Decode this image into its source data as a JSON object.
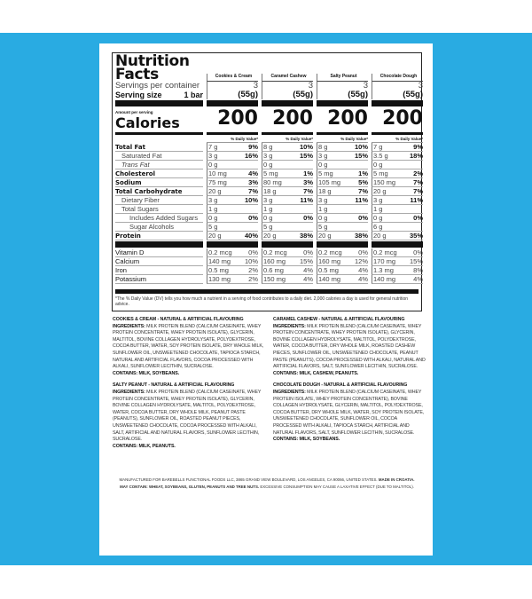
{
  "label": {
    "title_line1": "Nutrition",
    "title_line2": "Facts",
    "servings_label": "Servings per container",
    "serving_size_label": "Serving size",
    "serving_size_value": "1 bar",
    "amount_per_serving": "Amount per serving",
    "calories_label": "Calories",
    "dv_header": "% Daily Value*",
    "products": [
      {
        "name": "Cookies & Cream",
        "servings": "3",
        "size": "(55g)",
        "calories": "200"
      },
      {
        "name": "Caramel Cashew",
        "servings": "3",
        "size": "(55g)",
        "calories": "200"
      },
      {
        "name": "Salty Peanut",
        "servings": "3",
        "size": "(55g)",
        "calories": "200"
      },
      {
        "name": "Chocolate Dough",
        "servings": "3",
        "size": "(55g)",
        "calories": "200"
      }
    ],
    "nutrients": [
      {
        "label": "Total Fat",
        "style": "b",
        "values": [
          [
            "7 g",
            "9%"
          ],
          [
            "8 g",
            "10%"
          ],
          [
            "8 g",
            "10%"
          ],
          [
            "7 g",
            "9%"
          ]
        ]
      },
      {
        "label": "Saturated Fat",
        "style": "i1",
        "values": [
          [
            "3 g",
            "16%"
          ],
          [
            "3 g",
            "15%"
          ],
          [
            "3 g",
            "15%"
          ],
          [
            "3.5 g",
            "18%"
          ]
        ]
      },
      {
        "label": "Trans Fat",
        "style": "i1 it",
        "values": [
          [
            "0 g",
            ""
          ],
          [
            "0 g",
            ""
          ],
          [
            "0 g",
            ""
          ],
          [
            "0 g",
            ""
          ]
        ]
      },
      {
        "label": "Cholesterol",
        "style": "b",
        "values": [
          [
            "10 mg",
            "4%"
          ],
          [
            "5 mg",
            "1%"
          ],
          [
            "5 mg",
            "1%"
          ],
          [
            "5 mg",
            "2%"
          ]
        ]
      },
      {
        "label": "Sodium",
        "style": "b",
        "values": [
          [
            "75 mg",
            "3%"
          ],
          [
            "80 mg",
            "3%"
          ],
          [
            "105 mg",
            "5%"
          ],
          [
            "150 mg",
            "7%"
          ]
        ]
      },
      {
        "label": "Total Carbohydrate",
        "style": "b",
        "values": [
          [
            "20 g",
            "7%"
          ],
          [
            "18 g",
            "7%"
          ],
          [
            "18 g",
            "7%"
          ],
          [
            "20 g",
            "7%"
          ]
        ]
      },
      {
        "label": "Dietary Fiber",
        "style": "i1",
        "values": [
          [
            "3 g",
            "10%"
          ],
          [
            "3 g",
            "11%"
          ],
          [
            "3 g",
            "11%"
          ],
          [
            "3 g",
            "11%"
          ]
        ]
      },
      {
        "label": "Total Sugars",
        "style": "i1",
        "values": [
          [
            "1 g",
            ""
          ],
          [
            "1 g",
            ""
          ],
          [
            "1 g",
            ""
          ],
          [
            "1 g",
            ""
          ]
        ]
      },
      {
        "label": "Includes Added Sugars",
        "style": "i2",
        "values": [
          [
            "0 g",
            "0%"
          ],
          [
            "0 g",
            "0%"
          ],
          [
            "0 g",
            "0%"
          ],
          [
            "0 g",
            "0%"
          ]
        ]
      },
      {
        "label": "Sugar Alcohols",
        "style": "i2",
        "values": [
          [
            "5 g",
            ""
          ],
          [
            "5 g",
            ""
          ],
          [
            "5 g",
            ""
          ],
          [
            "6 g",
            ""
          ]
        ]
      },
      {
        "label": "Protein",
        "style": "b",
        "values": [
          [
            "20 g",
            "40%"
          ],
          [
            "20 g",
            "38%"
          ],
          [
            "20 g",
            "38%"
          ],
          [
            "20 g",
            "35%"
          ]
        ]
      }
    ],
    "micros": [
      {
        "label": "Vitamin D",
        "values": [
          [
            "0.2 mcg",
            "0%"
          ],
          [
            "0.2 mcg",
            "0%"
          ],
          [
            "0.2 mcg",
            "0%"
          ],
          [
            "0.2 mcg",
            "0%"
          ]
        ]
      },
      {
        "label": "Calcium",
        "values": [
          [
            "140 mg",
            "10%"
          ],
          [
            "160 mg",
            "15%"
          ],
          [
            "160 mg",
            "12%"
          ],
          [
            "170 mg",
            "15%"
          ]
        ]
      },
      {
        "label": "Iron",
        "values": [
          [
            "0.5 mg",
            "2%"
          ],
          [
            "0.6 mg",
            "4%"
          ],
          [
            "0.5 mg",
            "4%"
          ],
          [
            "1.3 mg",
            "8%"
          ]
        ]
      },
      {
        "label": "Potassium",
        "values": [
          [
            "130 mg",
            "2%"
          ],
          [
            "150 mg",
            "4%"
          ],
          [
            "140 mg",
            "4%"
          ],
          [
            "140 mg",
            "4%"
          ]
        ]
      }
    ],
    "footnote": "*The % Daily Value (DV) tells you how much a nutrient in a serving of food contributes to a daily diet. 2,000 calories a day is used for general nutrition advice."
  },
  "ingredients": [
    {
      "heading": "Cookies & Cream - Natural & Artificial Flavouring",
      "label": "Ingredients:",
      "text": " Milk protein blend (calcium caseinate, whey protein concentrate, whey protein isolate), glycerin, maltitol, bovine collagen hydrolysate, polydextrose, cocoa butter, water, soy protein isolate, dry whole milk, sunflower oil, unsweetened chocolate, tapioca starch, natural and artificial flavors, cocoa processed with alkali, sunflower lecithin, sucralose.",
      "contains": "Contains: Milk, Soybeans."
    },
    {
      "heading": "Caramel Cashew - Natural & Artificial Flavouring",
      "label": "Ingredients:",
      "text": " Milk protein blend (calcium caseinate, whey protein concentrate, whey protein isolate), glycerin, bovine collagen hydrolysate, maltitol, polydextrose, water, cocoa butter, dry whole milk, roasted cashew pieces, sunflower oil, unsweetened chocolate, peanut paste (peanuts), cocoa processed with alkali, natural and artificial flavors, salt, sunflower lecithin, sucralose.",
      "contains": "Contains: Milk, Cashew, Peanuts."
    },
    {
      "heading": "Salty Peanut - Natural & Artificial Flavouring",
      "label": "Ingredients:",
      "text": " Milk protein blend (calcium caseinate, whey protein concentrate, whey protein isolate), glycerin, bovine collagen hydrolysate, maltitol, polydextrose, water, cocoa butter, dry whole milk, peanut paste (peanuts), sunflower oil, roasted peanut pieces, unsweetened chocolate, cocoa processed with alkali, salt, artificial and natural flavors, sunflower lecithin, sucralose.",
      "contains": "Contains: Milk, Peanuts."
    },
    {
      "heading": "Chocolate Dough - Natural & Artificial Flavouring",
      "label": "Ingredients:",
      "text": " Milk protein blend (calcium caseinate, whey protein isolate, whey protein concentrate), bovine collagen hydrolysate, glycerin, maltitol, polydextrose, cocoa butter, dry whole milk, water, soy protein isolate, unsweetened chocolate, sunflower oil, cocoa processed with alkali, tapioca starch, artificial and natural flavors, salt, sunflower lecithin, sucralose.",
      "contains": "Contains: Milk, Soybeans."
    }
  ],
  "manufacturer": {
    "line1": "Manufactured for Barebells Functional Foods LLC, 3865 Grand View Boulevard, Los Angeles, CA 90066, United States. ",
    "made_in": "Made in Croatia.",
    "may_contain": "May contain: Wheat, Soybeans, Gluten, Peanuts and Tree Nuts.",
    "warning": " Excessive consumption may cause a laxative effect (due to maltitol)."
  },
  "colors": {
    "background": "#29abe2",
    "panel": "#ffffff",
    "ink": "#111111"
  }
}
